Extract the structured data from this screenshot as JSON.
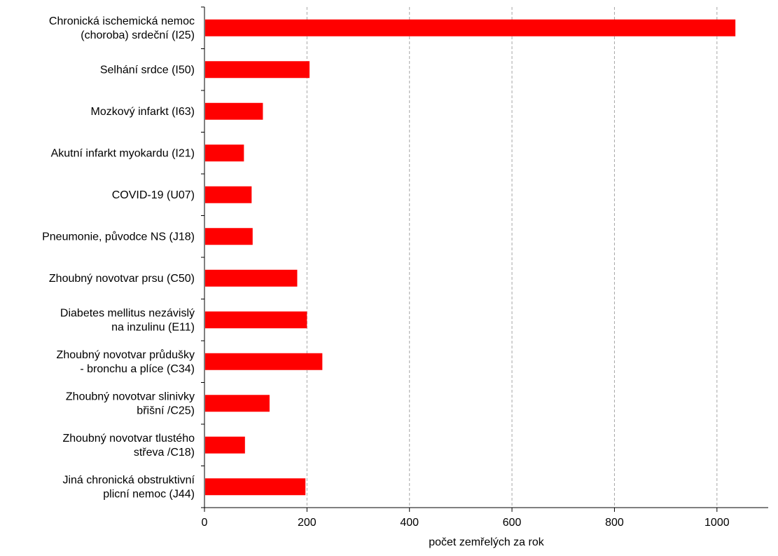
{
  "chart_data": {
    "type": "bar",
    "orientation": "horizontal",
    "categories": [
      [
        "Chronická ischemická nemoc",
        "(choroba) srdeční (I25)"
      ],
      [
        "Selhání srdce (I50)"
      ],
      [
        "Mozkový infarkt (I63)"
      ],
      [
        "Akutní infarkt myokardu (I21)"
      ],
      [
        "COVID-19 (U07)"
      ],
      [
        "Pneumonie, původce NS (J18)"
      ],
      [
        "Zhoubný novotvar prsu (C50)"
      ],
      [
        "Diabetes mellitus nezávislý",
        "na inzulinu (E11)"
      ],
      [
        "Zhoubný novotvar průdušky",
        "- bronchu a plíce (C34)"
      ],
      [
        "Zhoubný novotvar slinivky",
        "břišní /C25)"
      ],
      [
        "Zhoubný novotvar tlustého",
        "střeva /C18)"
      ],
      [
        "Jiná chronická obstruktivní",
        "plicní nemoc (J44)"
      ]
    ],
    "values": [
      1036,
      205,
      114,
      77,
      92,
      94,
      181,
      200,
      230,
      127,
      79,
      197
    ],
    "xlabel": "počet zemřelých za rok",
    "ylabel": "",
    "xlim": [
      0,
      1100
    ],
    "xticks": [
      0,
      200,
      400,
      600,
      800,
      1000
    ],
    "xtick_labels": [
      "0",
      "200",
      "400",
      "600",
      "800",
      "1000"
    ],
    "grid": "vertical-dashed",
    "legend": "none"
  },
  "colors": {
    "bar": "#ff0000",
    "grid": "#a6a6a6",
    "axis": "#000000"
  }
}
